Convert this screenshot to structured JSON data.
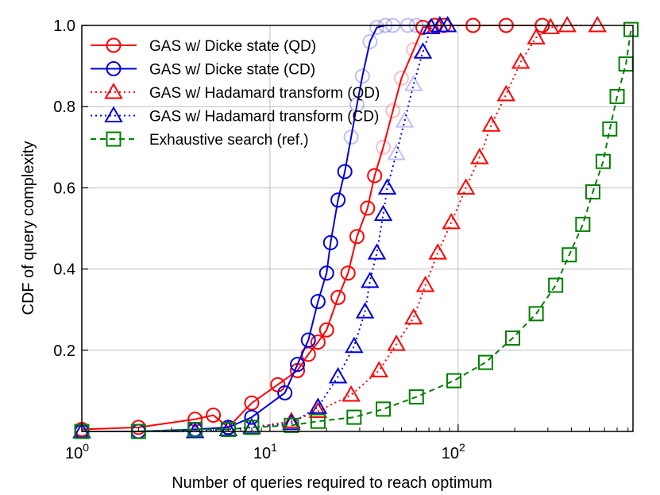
{
  "chart_data": {
    "type": "line",
    "title": "",
    "xlabel": "Number of queries required to reach optimum",
    "ylabel": "CDF of query complexity",
    "xscale": "log",
    "xlim": [
      1,
      850
    ],
    "ylim": [
      0,
      1.0
    ],
    "x_ticks": [
      {
        "value": 1,
        "base": "10",
        "exp": "0"
      },
      {
        "value": 10,
        "base": "10",
        "exp": "1"
      },
      {
        "value": 100,
        "base": "10",
        "exp": "2"
      }
    ],
    "y_ticks": [
      {
        "value": 0.2,
        "label": "0.2"
      },
      {
        "value": 0.4,
        "label": "0.4"
      },
      {
        "value": 0.6,
        "label": "0.6"
      },
      {
        "value": 0.8,
        "label": "0.8"
      },
      {
        "value": 1.0,
        "label": "1.0"
      }
    ],
    "grid": true,
    "legend_position": "top-left",
    "series": [
      {
        "name": "GAS w/ Dicke state (QD)",
        "color": "#ff0000",
        "line_style": "solid",
        "marker": "circle",
        "x": [
          1,
          2,
          4,
          5,
          6,
          8,
          11,
          14,
          16,
          18,
          20,
          23,
          26,
          29,
          33,
          36,
          40,
          45,
          50,
          58,
          65,
          75,
          84,
          120,
          180,
          280
        ],
        "y": [
          0.005,
          0.01,
          0.03,
          0.04,
          0.01,
          0.07,
          0.115,
          0.15,
          0.19,
          0.22,
          0.25,
          0.33,
          0.39,
          0.48,
          0.55,
          0.63,
          0.7,
          0.79,
          0.87,
          0.94,
          0.995,
          1.0,
          1.0,
          1.0,
          1.0,
          1.0
        ]
      },
      {
        "name": "GAS w/ Dicke state (CD)",
        "color": "#0000dd",
        "line_style": "solid",
        "marker": "circle",
        "x": [
          1,
          2,
          4,
          6,
          8,
          12,
          14,
          16,
          18,
          20,
          21,
          23,
          25,
          27,
          29,
          31,
          34,
          37,
          41,
          45,
          54,
          60
        ],
        "y": [
          0.0,
          0.0,
          0.005,
          0.01,
          0.035,
          0.095,
          0.165,
          0.225,
          0.32,
          0.39,
          0.465,
          0.57,
          0.64,
          0.725,
          0.805,
          0.875,
          0.96,
          0.995,
          1.0,
          1.0,
          1.0,
          1.0
        ]
      },
      {
        "name": "GAS w/ Hadamard transform (QD)",
        "color": "#ff0000",
        "line_style": "dotted",
        "marker": "triangle",
        "x": [
          1,
          4,
          6,
          8,
          13,
          18,
          27,
          38,
          47,
          58,
          67,
          78,
          92,
          110,
          130,
          150,
          180,
          215,
          260,
          310,
          380,
          550
        ],
        "y": [
          0.0,
          0.0,
          0.005,
          0.01,
          0.025,
          0.05,
          0.09,
          0.15,
          0.215,
          0.28,
          0.36,
          0.44,
          0.515,
          0.6,
          0.675,
          0.755,
          0.83,
          0.91,
          0.97,
          0.995,
          1.0,
          1.0
        ]
      },
      {
        "name": "GAS w/ Hadamard transform (CD)",
        "color": "#0000dd",
        "line_style": "dotted",
        "marker": "triangle",
        "x": [
          1,
          4,
          6,
          8,
          13,
          18,
          23,
          28,
          32,
          34,
          37,
          40,
          42,
          47,
          52,
          58,
          65,
          72,
          80,
          88
        ],
        "y": [
          0.0,
          0.0,
          0.005,
          0.01,
          0.02,
          0.06,
          0.135,
          0.21,
          0.295,
          0.37,
          0.44,
          0.535,
          0.6,
          0.685,
          0.765,
          0.855,
          0.935,
          0.995,
          1.0,
          1.0
        ]
      },
      {
        "name": "Exhaustive search (ref.)",
        "color": "#007f00",
        "line_style": "dashed",
        "marker": "square",
        "x": [
          1,
          2,
          4,
          6,
          8,
          13,
          18,
          28,
          40,
          60,
          95,
          140,
          195,
          260,
          330,
          390,
          460,
          520,
          590,
          640,
          700,
          780,
          830
        ],
        "y": [
          0.0,
          0.0,
          0.005,
          0.005,
          0.01,
          0.015,
          0.025,
          0.035,
          0.055,
          0.085,
          0.125,
          0.17,
          0.23,
          0.29,
          0.36,
          0.435,
          0.51,
          0.59,
          0.665,
          0.745,
          0.825,
          0.905,
          0.99
        ]
      }
    ]
  }
}
